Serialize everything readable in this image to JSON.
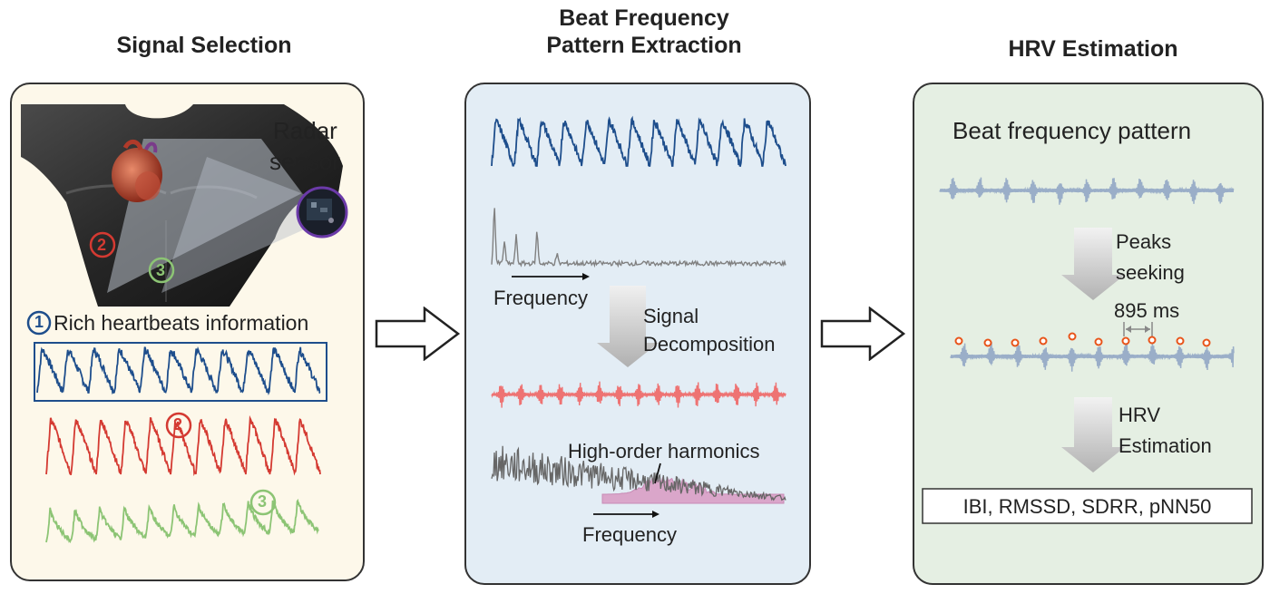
{
  "titles": {
    "signal_selection": "Signal Selection",
    "beat_line1": "Beat Frequency",
    "beat_line2": "Pattern Extraction",
    "hrv": "HRV Estimation"
  },
  "panel1": {
    "radar_line1": "Radar",
    "radar_line2": "sensor",
    "marker1": "1",
    "marker2": "2",
    "marker3": "3",
    "rich_label": "Rich heartbeats information"
  },
  "panel2": {
    "frequency_top": "Frequency",
    "decomp_line1": "Signal",
    "decomp_line2": "Decomposition",
    "harmonics": "High-order harmonics",
    "frequency_bottom": "Frequency"
  },
  "panel3": {
    "pattern_title": "Beat frequency pattern",
    "peaks_line1": "Peaks",
    "peaks_line2": "seeking",
    "interval": "895 ms",
    "hrv_line1": "HRV",
    "hrv_line2": "Estimation",
    "metrics": "IBI, RMSSD, SDRR, pNN50"
  },
  "colors": {
    "panel1_bg": "#fdf8ea",
    "panel2_bg": "#e3edf5",
    "panel3_bg": "#e5efe3",
    "signal_blue": "#1e4e8c",
    "signal_red": "#d43a32",
    "signal_green": "#8cc474",
    "spectrum_gray": "#808080",
    "decomposed_red": "#ee7373",
    "harmonics_pink": "#d99ac3",
    "pattern_blue": "#9aaec8",
    "peak_orange": "#e8541a"
  }
}
